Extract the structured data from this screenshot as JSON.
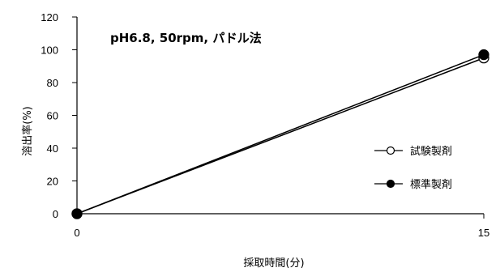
{
  "chart_data": {
    "type": "line",
    "title": "pH6.8, 50rpm, パドル法",
    "xlabel": "採取時間(分)",
    "ylabel": "溶出率(%)",
    "xlim": [
      0,
      15
    ],
    "ylim": [
      0,
      120
    ],
    "xticks": [
      "0",
      "15"
    ],
    "yticks": [
      "0",
      "20",
      "40",
      "60",
      "80",
      "100",
      "120"
    ],
    "grid": false,
    "legend_position": "right",
    "x": [
      0,
      15
    ],
    "series": [
      {
        "name": "試験製剤",
        "values": [
          0,
          95
        ],
        "marker": "open-circle",
        "color": "#000000"
      },
      {
        "name": "標準製剤",
        "values": [
          0,
          97
        ],
        "marker": "filled-circle",
        "color": "#000000"
      }
    ]
  }
}
